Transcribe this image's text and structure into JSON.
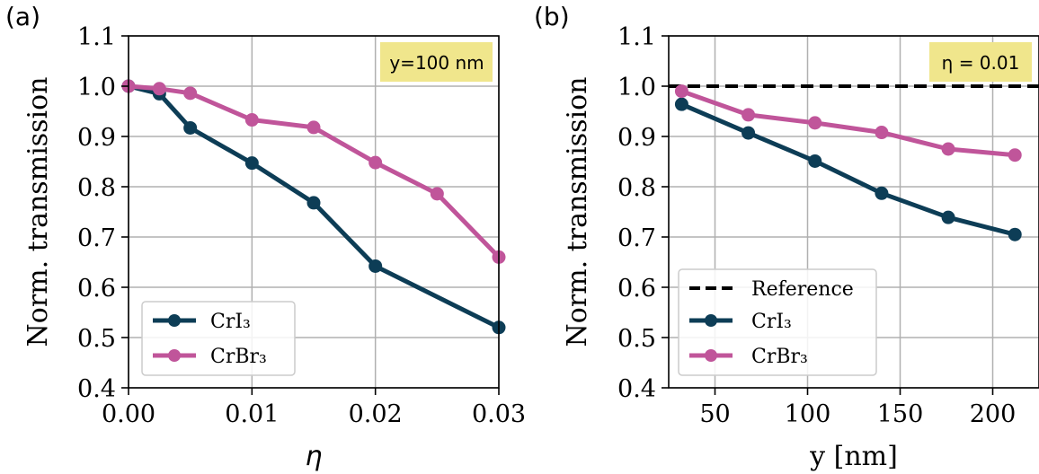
{
  "chart_data": [
    {
      "type": "line",
      "panel_label": "(a)",
      "xlabel": "η",
      "ylabel": "Norm. transmission",
      "xlim": [
        0.0,
        0.03
      ],
      "ylim": [
        0.4,
        1.1
      ],
      "xticks": [
        0.0,
        0.01,
        0.02,
        0.03
      ],
      "xtick_labels": [
        "0.00",
        "0.01",
        "0.02",
        "0.03"
      ],
      "yticks": [
        0.4,
        0.5,
        0.6,
        0.7,
        0.8,
        0.9,
        1.0,
        1.1
      ],
      "ytick_labels": [
        "0.4",
        "0.5",
        "0.6",
        "0.7",
        "0.8",
        "0.9",
        "1.0",
        "1.1"
      ],
      "grid": true,
      "annotation": "y=100 nm",
      "annotation_color": "#f0e68c",
      "legend_position": "lower-left",
      "series": [
        {
          "name": "CrI₃",
          "color": "#0d3d56",
          "marker": "circle",
          "x": [
            0.0,
            0.0025,
            0.005,
            0.01,
            0.015,
            0.02,
            0.03
          ],
          "y": [
            1.0,
            0.985,
            0.917,
            0.847,
            0.768,
            0.642,
            0.52
          ]
        },
        {
          "name": "CrBr₃",
          "color": "#c0559a",
          "marker": "circle",
          "x": [
            0.0,
            0.0025,
            0.005,
            0.01,
            0.015,
            0.02,
            0.025,
            0.03
          ],
          "y": [
            1.0,
            0.995,
            0.986,
            0.933,
            0.918,
            0.848,
            0.786,
            0.66
          ]
        }
      ]
    },
    {
      "type": "line",
      "panel_label": "(b)",
      "xlabel": "y [nm]",
      "ylabel": "Norm. transmission",
      "xlim": [
        25,
        225
      ],
      "ylim": [
        0.4,
        1.1
      ],
      "xticks": [
        50,
        100,
        150,
        200
      ],
      "xtick_labels": [
        "50",
        "100",
        "150",
        "200"
      ],
      "yticks": [
        0.4,
        0.5,
        0.6,
        0.7,
        0.8,
        0.9,
        1.0,
        1.1
      ],
      "ytick_labels": [
        "0.4",
        "0.5",
        "0.6",
        "0.7",
        "0.8",
        "0.9",
        "1.0",
        "1.1"
      ],
      "grid": true,
      "annotation": "η = 0.01",
      "annotation_color": "#f0e68c",
      "legend_position": "lower-left",
      "series": [
        {
          "name": "Reference",
          "color": "#000000",
          "style": "dashed",
          "x": [
            25,
            225
          ],
          "y": [
            1.0,
            1.0
          ]
        },
        {
          "name": "CrI₃",
          "color": "#0d3d56",
          "marker": "circle",
          "x": [
            32,
            68,
            104,
            140,
            176,
            212
          ],
          "y": [
            0.964,
            0.907,
            0.851,
            0.787,
            0.739,
            0.705
          ]
        },
        {
          "name": "CrBr₃",
          "color": "#c0559a",
          "marker": "circle",
          "x": [
            32,
            68,
            104,
            140,
            176,
            212
          ],
          "y": [
            0.99,
            0.943,
            0.927,
            0.908,
            0.875,
            0.863
          ]
        }
      ]
    }
  ]
}
